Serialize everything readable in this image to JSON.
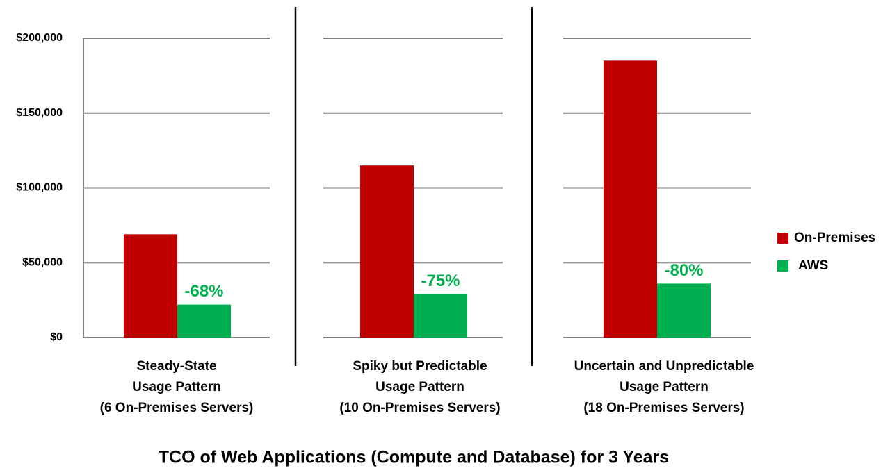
{
  "chart_data": {
    "type": "bar",
    "title": "TCO of Web Applications (Compute and Database) for 3 Years",
    "categories": [
      "Steady-State\nUsage Pattern\n(6 On-Premises Servers)",
      "Spiky but Predictable\nUsage Pattern\n(10 On-Premises Servers)",
      "Uncertain and Unpredictable\nUsage Pattern\n(18 On-Premises Servers)"
    ],
    "series": [
      {
        "name": "On-Premises",
        "color": "#c00000",
        "values": [
          69000,
          115000,
          185000
        ]
      },
      {
        "name": "AWS",
        "color": "#00b050",
        "values": [
          22000,
          29000,
          36000
        ]
      }
    ],
    "annotations": [
      "-68%",
      "-75%",
      "-80%"
    ],
    "ylim": [
      0,
      200000
    ],
    "yticks": [
      {
        "value": 0,
        "label": "$0"
      },
      {
        "value": 50000,
        "label": "$50,000"
      },
      {
        "value": 100000,
        "label": "$100,000"
      },
      {
        "value": 150000,
        "label": "$150,000"
      },
      {
        "value": 200000,
        "label": "$200,000"
      }
    ],
    "grid": true,
    "legend": "right"
  }
}
